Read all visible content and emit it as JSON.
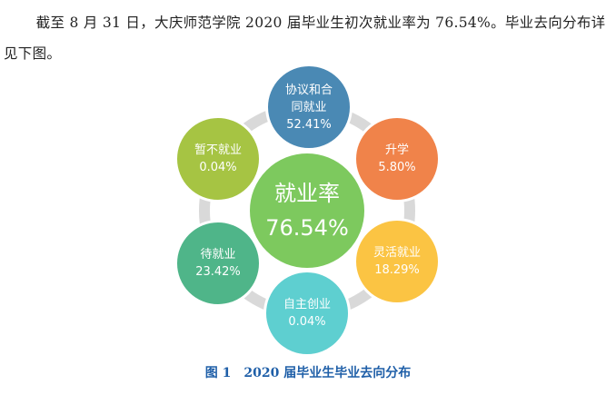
{
  "paragraph": "截至 8 月 31 日，大庆师范学院 2020 届毕业生初次就业率为 76.54%。毕业去向分布详见下图。",
  "diagram": {
    "center": {
      "label": "就业率",
      "value": "76.54%",
      "color": "#7dc95e"
    },
    "nodes": [
      {
        "label": [
          "协议和合",
          "同就业"
        ],
        "value": "52.41%",
        "color": "#4a89b4"
      },
      {
        "label": [
          "升学"
        ],
        "value": "5.80%",
        "color": "#f0834a"
      },
      {
        "label": [
          "灵活就业"
        ],
        "value": "18.29%",
        "color": "#fbc443"
      },
      {
        "label": [
          "自主创业"
        ],
        "value": "0.04%",
        "color": "#5ecfd0"
      },
      {
        "label": [
          "待就业"
        ],
        "value": "23.42%",
        "color": "#4fb589"
      },
      {
        "label": [
          "暂不就业"
        ],
        "value": "0.04%",
        "color": "#a6c443"
      }
    ]
  },
  "caption": "图 1　2020 届毕业生毕业去向分布"
}
